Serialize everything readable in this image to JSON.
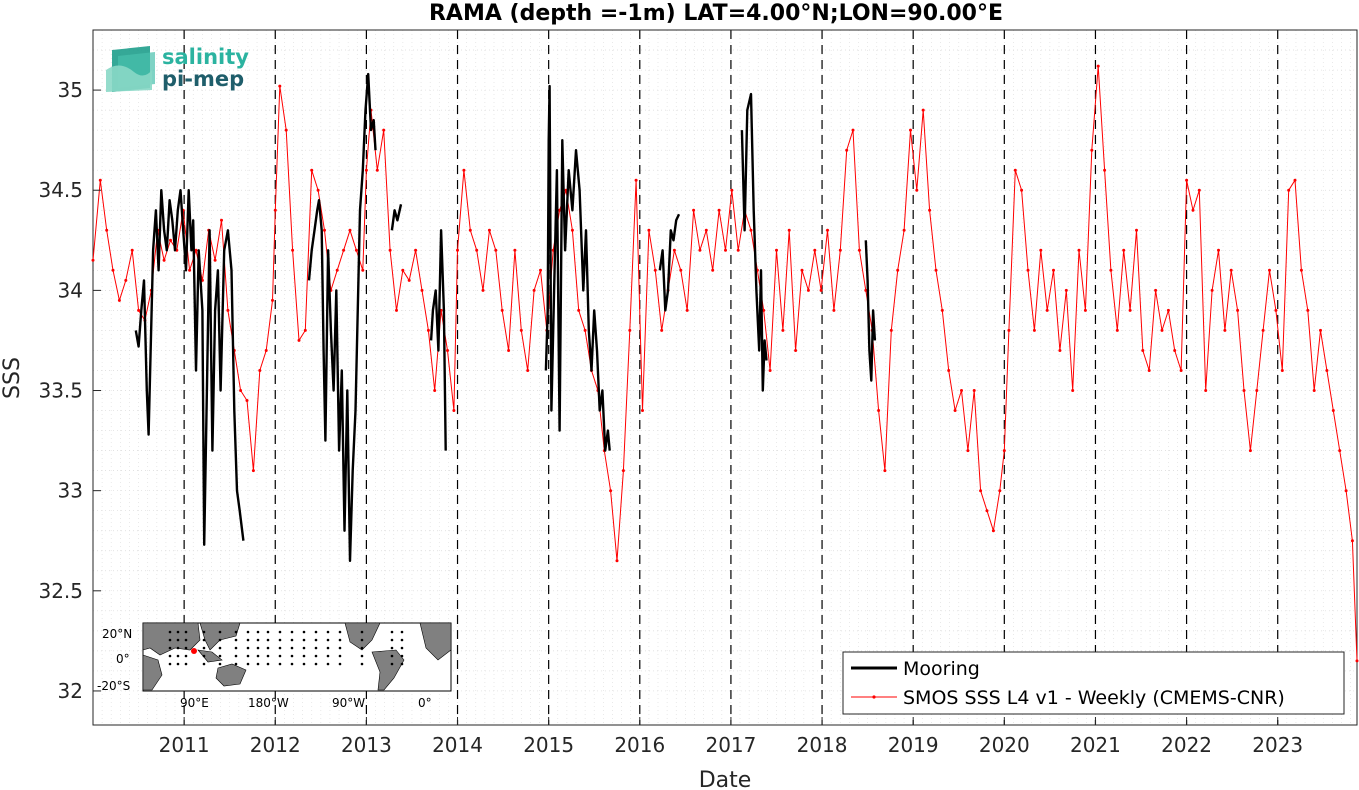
{
  "chart_data": {
    "type": "line",
    "title": "RAMA (depth =-1m) LAT=4.00°N;LON=90.00°E",
    "xlabel": "Date",
    "ylabel": "SSS",
    "xlim": [
      2010.0,
      2023.87
    ],
    "ylim": [
      31.83,
      35.3
    ],
    "x_ticks": [
      2011,
      2012,
      2013,
      2014,
      2015,
      2016,
      2017,
      2018,
      2019,
      2020,
      2021,
      2022,
      2023
    ],
    "x_tick_labels": [
      "2011",
      "2012",
      "2013",
      "2014",
      "2015",
      "2016",
      "2017",
      "2018",
      "2019",
      "2020",
      "2021",
      "2022",
      "2023"
    ],
    "y_ticks": [
      32,
      32.5,
      33,
      33.5,
      34,
      34.5,
      35
    ],
    "y_tick_labels": [
      "32",
      "32.5",
      "33",
      "33.5",
      "34",
      "34.5",
      "35"
    ],
    "year_boundaries_dashed": true,
    "grid": "minor dotted",
    "legend_position": "bottom-right",
    "series": [
      {
        "name": "Mooring",
        "color": "#000000",
        "style": "thick line",
        "segments": [
          [
            [
              2010.47,
              33.8
            ],
            [
              2010.5,
              33.72
            ],
            [
              2010.53,
              33.9
            ],
            [
              2010.56,
              34.05
            ],
            [
              2010.59,
              33.5
            ],
            [
              2010.61,
              33.28
            ],
            [
              2010.63,
              33.65
            ],
            [
              2010.66,
              34.2
            ],
            [
              2010.69,
              34.4
            ],
            [
              2010.72,
              34.1
            ],
            [
              2010.75,
              34.5
            ],
            [
              2010.78,
              34.3
            ],
            [
              2010.81,
              34.2
            ],
            [
              2010.84,
              34.45
            ],
            [
              2010.87,
              34.35
            ],
            [
              2010.9,
              34.2
            ],
            [
              2010.93,
              34.4
            ],
            [
              2010.96,
              34.5
            ],
            [
              2010.99,
              34.3
            ],
            [
              2011.02,
              34.1
            ],
            [
              2011.05,
              34.5
            ],
            [
              2011.08,
              34.2
            ],
            [
              2011.1,
              34.35
            ],
            [
              2011.13,
              33.6
            ],
            [
              2011.16,
              34.2
            ],
            [
              2011.2,
              33.9
            ],
            [
              2011.22,
              32.73
            ],
            [
              2011.25,
              33.5
            ],
            [
              2011.28,
              34.3
            ],
            [
              2011.31,
              33.2
            ],
            [
              2011.34,
              33.9
            ],
            [
              2011.37,
              34.1
            ],
            [
              2011.4,
              33.5
            ],
            [
              2011.44,
              34.2
            ],
            [
              2011.48,
              34.3
            ],
            [
              2011.52,
              34.1
            ],
            [
              2011.55,
              33.4
            ],
            [
              2011.58,
              33.0
            ],
            [
              2011.61,
              32.9
            ],
            [
              2011.65,
              32.75
            ]
          ],
          [
            [
              2012.37,
              34.05
            ],
            [
              2012.4,
              34.2
            ],
            [
              2012.43,
              34.3
            ],
            [
              2012.46,
              34.4
            ],
            [
              2012.48,
              34.45
            ],
            [
              2012.51,
              34.3
            ],
            [
              2012.53,
              33.7
            ],
            [
              2012.55,
              33.25
            ],
            [
              2012.58,
              34.2
            ],
            [
              2012.61,
              33.8
            ],
            [
              2012.64,
              33.5
            ],
            [
              2012.67,
              34.0
            ],
            [
              2012.7,
              33.2
            ],
            [
              2012.73,
              33.6
            ],
            [
              2012.76,
              32.8
            ],
            [
              2012.79,
              33.5
            ],
            [
              2012.82,
              32.65
            ],
            [
              2012.85,
              33.1
            ],
            [
              2012.88,
              33.4
            ],
            [
              2012.91,
              34.0
            ],
            [
              2012.93,
              34.4
            ],
            [
              2012.96,
              34.6
            ],
            [
              2012.99,
              34.9
            ],
            [
              2013.02,
              35.08
            ],
            [
              2013.05,
              34.8
            ],
            [
              2013.08,
              34.85
            ],
            [
              2013.1,
              34.7
            ]
          ],
          [
            [
              2013.28,
              34.3
            ],
            [
              2013.31,
              34.4
            ],
            [
              2013.34,
              34.35
            ],
            [
              2013.38,
              34.43
            ]
          ],
          [
            [
              2013.71,
              33.75
            ],
            [
              2013.73,
              33.9
            ],
            [
              2013.76,
              34.0
            ],
            [
              2013.79,
              33.7
            ],
            [
              2013.82,
              34.3
            ],
            [
              2013.85,
              33.9
            ],
            [
              2013.87,
              33.2
            ]
          ],
          [
            [
              2014.97,
              33.6
            ],
            [
              2014.99,
              33.9
            ],
            [
              2015.0,
              34.75
            ],
            [
              2015.01,
              35.02
            ],
            [
              2015.03,
              33.4
            ],
            [
              2015.06,
              34.0
            ],
            [
              2015.09,
              34.6
            ],
            [
              2015.12,
              33.3
            ],
            [
              2015.15,
              34.75
            ],
            [
              2015.18,
              34.2
            ],
            [
              2015.22,
              34.6
            ],
            [
              2015.26,
              34.4
            ],
            [
              2015.3,
              34.7
            ],
            [
              2015.34,
              34.5
            ],
            [
              2015.38,
              34.0
            ],
            [
              2015.41,
              34.3
            ],
            [
              2015.44,
              33.8
            ],
            [
              2015.47,
              33.6
            ],
            [
              2015.5,
              33.9
            ],
            [
              2015.53,
              33.7
            ],
            [
              2015.56,
              33.4
            ],
            [
              2015.59,
              33.5
            ],
            [
              2015.62,
              33.2
            ],
            [
              2015.65,
              33.3
            ],
            [
              2015.67,
              33.2
            ]
          ],
          [
            [
              2016.22,
              34.1
            ],
            [
              2016.25,
              34.2
            ],
            [
              2016.28,
              33.9
            ],
            [
              2016.31,
              34.0
            ],
            [
              2016.34,
              34.3
            ],
            [
              2016.37,
              34.25
            ],
            [
              2016.4,
              34.35
            ],
            [
              2016.43,
              34.38
            ]
          ],
          [
            [
              2017.12,
              34.8
            ],
            [
              2017.15,
              34.3
            ],
            [
              2017.18,
              34.9
            ],
            [
              2017.22,
              34.98
            ],
            [
              2017.25,
              34.4
            ],
            [
              2017.28,
              34.0
            ],
            [
              2017.31,
              33.7
            ],
            [
              2017.33,
              34.1
            ],
            [
              2017.35,
              33.5
            ],
            [
              2017.37,
              33.75
            ],
            [
              2017.39,
              33.65
            ]
          ],
          [
            [
              2018.48,
              34.25
            ],
            [
              2018.5,
              34.05
            ],
            [
              2018.52,
              33.7
            ],
            [
              2018.54,
              33.55
            ],
            [
              2018.56,
              33.9
            ],
            [
              2018.58,
              33.75
            ]
          ]
        ]
      },
      {
        "name": "SMOS SSS L4 v1 - Weekly (CMEMS-CNR)",
        "color": "#ff0000",
        "style": "thin line with point markers",
        "x": [
          2010.0,
          2010.08,
          2010.15,
          2010.22,
          2010.29,
          2010.36,
          2010.43,
          2010.5,
          2010.57,
          2010.64,
          2010.71,
          2010.78,
          2010.85,
          2010.92,
          2010.99,
          2011.06,
          2011.13,
          2011.2,
          2011.27,
          2011.34,
          2011.41,
          2011.48,
          2011.55,
          2011.62,
          2011.69,
          2011.76,
          2011.83,
          2011.9,
          2011.97,
          2012.0,
          2012.05,
          2012.12,
          2012.19,
          2012.26,
          2012.33,
          2012.4,
          2012.47,
          2012.54,
          2012.61,
          2012.68,
          2012.75,
          2012.82,
          2012.89,
          2012.96,
          2013.0,
          2013.05,
          2013.12,
          2013.19,
          2013.26,
          2013.33,
          2013.4,
          2013.47,
          2013.54,
          2013.61,
          2013.68,
          2013.75,
          2013.82,
          2013.89,
          2013.96,
          2014.0,
          2014.07,
          2014.14,
          2014.21,
          2014.28,
          2014.35,
          2014.42,
          2014.49,
          2014.56,
          2014.63,
          2014.7,
          2014.77,
          2014.84,
          2014.91,
          2014.98,
          2015.05,
          2015.12,
          2015.19,
          2015.26,
          2015.33,
          2015.4,
          2015.47,
          2015.54,
          2015.61,
          2015.68,
          2015.75,
          2015.82,
          2015.89,
          2015.96,
          2016.03,
          2016.1,
          2016.17,
          2016.24,
          2016.31,
          2016.38,
          2016.45,
          2016.52,
          2016.59,
          2016.66,
          2016.73,
          2016.8,
          2016.87,
          2016.94,
          2017.01,
          2017.08,
          2017.15,
          2017.22,
          2017.29,
          2017.36,
          2017.43,
          2017.5,
          2017.57,
          2017.64,
          2017.71,
          2017.78,
          2017.85,
          2017.92,
          2017.99,
          2018.06,
          2018.13,
          2018.2,
          2018.27,
          2018.34,
          2018.41,
          2018.48,
          2018.55,
          2018.62,
          2018.69,
          2018.76,
          2018.83,
          2018.9,
          2018.97,
          2019.04,
          2019.11,
          2019.18,
          2019.25,
          2019.32,
          2019.39,
          2019.46,
          2019.53,
          2019.6,
          2019.67,
          2019.74,
          2019.81,
          2019.88,
          2019.95,
          2020.0,
          2020.05,
          2020.12,
          2020.19,
          2020.26,
          2020.33,
          2020.4,
          2020.47,
          2020.54,
          2020.61,
          2020.68,
          2020.75,
          2020.82,
          2020.89,
          2020.96,
          2021.03,
          2021.1,
          2021.17,
          2021.24,
          2021.31,
          2021.38,
          2021.45,
          2021.52,
          2021.59,
          2021.66,
          2021.73,
          2021.8,
          2021.87,
          2021.94,
          2022.0,
          2022.07,
          2022.14,
          2022.21,
          2022.28,
          2022.35,
          2022.42,
          2022.49,
          2022.56,
          2022.63,
          2022.7,
          2022.77,
          2022.84,
          2022.91,
          2022.98,
          2023.05,
          2023.12,
          2023.19,
          2023.26,
          2023.33,
          2023.4,
          2023.47,
          2023.54,
          2023.61,
          2023.68,
          2023.75,
          2023.82,
          2023.87
        ],
        "values": [
          34.15,
          34.55,
          34.3,
          34.1,
          33.95,
          34.05,
          34.2,
          33.9,
          33.85,
          34.0,
          34.3,
          34.15,
          34.25,
          34.2,
          34.4,
          34.1,
          34.2,
          34.05,
          34.3,
          34.15,
          34.35,
          33.9,
          33.7,
          33.5,
          33.45,
          33.1,
          33.6,
          33.7,
          33.95,
          34.4,
          35.02,
          34.8,
          34.2,
          33.75,
          33.8,
          34.6,
          34.5,
          34.3,
          34.0,
          34.1,
          34.2,
          34.3,
          34.2,
          34.1,
          34.6,
          34.9,
          34.6,
          34.8,
          34.2,
          33.9,
          34.1,
          34.05,
          34.2,
          34.0,
          33.8,
          33.5,
          33.9,
          33.7,
          33.4,
          34.2,
          34.6,
          34.3,
          34.2,
          34.0,
          34.3,
          34.2,
          33.9,
          33.7,
          34.2,
          33.8,
          33.6,
          34.0,
          34.1,
          33.8,
          34.2,
          34.4,
          34.5,
          34.3,
          33.9,
          33.8,
          33.6,
          33.5,
          33.2,
          33.0,
          32.65,
          33.1,
          33.8,
          34.55,
          33.4,
          34.3,
          34.1,
          33.8,
          34.0,
          34.2,
          34.1,
          33.9,
          34.4,
          34.2,
          34.3,
          34.1,
          34.4,
          34.2,
          34.5,
          34.2,
          34.4,
          34.3,
          34.1,
          33.9,
          33.6,
          34.2,
          33.8,
          34.3,
          33.7,
          34.1,
          34.0,
          34.2,
          34.0,
          34.3,
          33.9,
          34.2,
          34.7,
          34.8,
          34.2,
          34.0,
          33.8,
          33.4,
          33.1,
          33.8,
          34.1,
          34.3,
          34.8,
          34.5,
          34.9,
          34.4,
          34.1,
          33.9,
          33.6,
          33.4,
          33.5,
          33.2,
          33.5,
          33.0,
          32.9,
          32.8,
          33.0,
          33.2,
          33.8,
          34.6,
          34.5,
          34.1,
          33.8,
          34.2,
          33.9,
          34.1,
          33.7,
          34.0,
          33.5,
          34.2,
          33.9,
          34.7,
          35.12,
          34.6,
          34.1,
          33.8,
          34.2,
          33.9,
          34.3,
          33.7,
          33.6,
          34.0,
          33.8,
          33.9,
          33.7,
          33.6,
          34.55,
          34.4,
          34.5,
          33.5,
          34.0,
          34.2,
          33.8,
          34.1,
          33.9,
          33.5,
          33.2,
          33.5,
          33.8,
          34.1,
          33.9,
          33.6,
          34.5,
          34.55,
          34.1,
          33.9,
          33.5,
          33.8,
          33.6,
          33.4,
          33.2,
          33.0,
          32.75,
          32.15
        ]
      }
    ]
  },
  "logo": {
    "line1": "salinity",
    "line2": "pi-mep",
    "color1": "#2bb3a0",
    "color2": "#1f5e6b"
  },
  "inset_map": {
    "lat_labels": [
      "20°N",
      "0°",
      "-20°S"
    ],
    "lon_labels": [
      "90°E",
      "180°W",
      "90°W",
      "0°"
    ],
    "land_color": "#808080",
    "ocean_color": "#ffffff",
    "marker_color": "#ff0000"
  }
}
